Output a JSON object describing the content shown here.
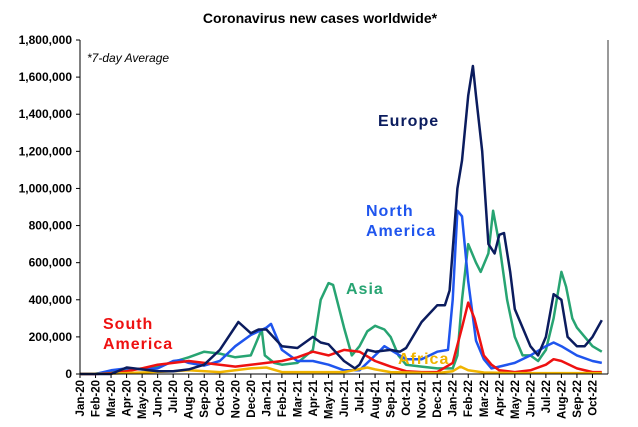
{
  "chart_data": {
    "type": "line",
    "title": "Coronavirus new cases worldwide*",
    "note": "*7-day Average",
    "xlabel": "",
    "ylabel": "",
    "ylim": [
      0,
      1800000
    ],
    "yticks": [
      "0",
      "200,000",
      "400,000",
      "600,000",
      "800,000",
      "1,000,000",
      "1,200,000",
      "1,400,000",
      "1,600,000",
      "1,800,000"
    ],
    "categories": [
      "Jan-20",
      "Feb-20",
      "Mar-20",
      "Apr-20",
      "May-20",
      "Jun-20",
      "Jul-20",
      "Aug-20",
      "Sep-20",
      "Oct-20",
      "Nov-20",
      "Dec-20",
      "Jan-21",
      "Feb-21",
      "Mar-21",
      "Apr-21",
      "May-21",
      "Jun-21",
      "Jul-21",
      "Aug-21",
      "Sep-21",
      "Oct-21",
      "Nov-21",
      "Dec-21",
      "Jan-22",
      "Feb-22",
      "Mar-22",
      "Apr-22",
      "May-22",
      "Jun-22",
      "Jul-22",
      "Aug-22",
      "Sep-22",
      "Oct-22"
    ],
    "grid": false,
    "series": [
      {
        "name": "Asia",
        "label": "Asia",
        "color": "#27a472",
        "points": [
          [
            0,
            0
          ],
          [
            1,
            2000
          ],
          [
            2,
            10000
          ],
          [
            3,
            20000
          ],
          [
            5,
            40000
          ],
          [
            7,
            90000
          ],
          [
            8,
            120000
          ],
          [
            9,
            110000
          ],
          [
            10,
            90000
          ],
          [
            11,
            100000
          ],
          [
            11.5,
            200000
          ],
          [
            11.7,
            240000
          ],
          [
            11.9,
            100000
          ],
          [
            12.5,
            60000
          ],
          [
            13,
            50000
          ],
          [
            14,
            60000
          ],
          [
            15,
            130000
          ],
          [
            15.5,
            400000
          ],
          [
            16,
            490000
          ],
          [
            16.3,
            480000
          ],
          [
            17,
            250000
          ],
          [
            17.5,
            100000
          ],
          [
            18,
            150000
          ],
          [
            18.5,
            230000
          ],
          [
            19,
            260000
          ],
          [
            19.6,
            240000
          ],
          [
            20,
            200000
          ],
          [
            20.5,
            100000
          ],
          [
            21,
            50000
          ],
          [
            22,
            40000
          ],
          [
            23,
            30000
          ],
          [
            24,
            30000
          ],
          [
            24.3,
            100000
          ],
          [
            24.6,
            400000
          ],
          [
            25,
            700000
          ],
          [
            25.5,
            600000
          ],
          [
            25.8,
            550000
          ],
          [
            26.3,
            650000
          ],
          [
            26.6,
            880000
          ],
          [
            27,
            700000
          ],
          [
            27.5,
            400000
          ],
          [
            28,
            200000
          ],
          [
            28.5,
            100000
          ],
          [
            29,
            100000
          ],
          [
            29.5,
            70000
          ],
          [
            30,
            130000
          ],
          [
            30.5,
            300000
          ],
          [
            31,
            550000
          ],
          [
            31.3,
            470000
          ],
          [
            31.7,
            300000
          ],
          [
            32,
            250000
          ],
          [
            33,
            150000
          ],
          [
            33.6,
            120000
          ]
        ]
      },
      {
        "name": "North America",
        "label": "North America",
        "color": "#1f55ee",
        "points": [
          [
            0,
            0
          ],
          [
            1,
            0
          ],
          [
            2,
            20000
          ],
          [
            3,
            30000
          ],
          [
            4,
            25000
          ],
          [
            5,
            30000
          ],
          [
            6,
            70000
          ],
          [
            6.5,
            75000
          ],
          [
            7,
            60000
          ],
          [
            8,
            45000
          ],
          [
            9,
            70000
          ],
          [
            10,
            150000
          ],
          [
            11,
            210000
          ],
          [
            12,
            250000
          ],
          [
            12.3,
            270000
          ],
          [
            13,
            130000
          ],
          [
            14,
            70000
          ],
          [
            15,
            70000
          ],
          [
            16,
            50000
          ],
          [
            17,
            20000
          ],
          [
            18,
            20000
          ],
          [
            19,
            100000
          ],
          [
            19.6,
            150000
          ],
          [
            20,
            130000
          ],
          [
            21,
            80000
          ],
          [
            22,
            80000
          ],
          [
            23,
            120000
          ],
          [
            23.7,
            130000
          ],
          [
            24,
            400000
          ],
          [
            24.3,
            880000
          ],
          [
            24.6,
            850000
          ],
          [
            25,
            500000
          ],
          [
            25.5,
            180000
          ],
          [
            26,
            80000
          ],
          [
            26.5,
            30000
          ],
          [
            27,
            40000
          ],
          [
            28,
            60000
          ],
          [
            29,
            100000
          ],
          [
            30,
            150000
          ],
          [
            30.5,
            170000
          ],
          [
            31,
            150000
          ],
          [
            32,
            100000
          ],
          [
            33,
            70000
          ],
          [
            33.6,
            60000
          ]
        ]
      },
      {
        "name": "South America",
        "label": "South America",
        "color": "#ee1111",
        "points": [
          [
            0,
            0
          ],
          [
            1,
            0
          ],
          [
            2,
            5000
          ],
          [
            3,
            15000
          ],
          [
            4,
            30000
          ],
          [
            5,
            50000
          ],
          [
            6,
            60000
          ],
          [
            7,
            70000
          ],
          [
            8,
            60000
          ],
          [
            9,
            50000
          ],
          [
            10,
            40000
          ],
          [
            11,
            50000
          ],
          [
            12,
            60000
          ],
          [
            13,
            70000
          ],
          [
            14,
            90000
          ],
          [
            15,
            120000
          ],
          [
            16,
            100000
          ],
          [
            17,
            130000
          ],
          [
            18,
            120000
          ],
          [
            19,
            70000
          ],
          [
            20,
            40000
          ],
          [
            21,
            15000
          ],
          [
            22,
            10000
          ],
          [
            23,
            10000
          ],
          [
            24,
            60000
          ],
          [
            24.6,
            250000
          ],
          [
            25,
            385000
          ],
          [
            25.4,
            300000
          ],
          [
            26,
            100000
          ],
          [
            26.5,
            50000
          ],
          [
            27,
            20000
          ],
          [
            28,
            10000
          ],
          [
            29,
            20000
          ],
          [
            30,
            50000
          ],
          [
            30.5,
            80000
          ],
          [
            31,
            70000
          ],
          [
            32,
            30000
          ],
          [
            33,
            10000
          ],
          [
            33.6,
            10000
          ]
        ]
      },
      {
        "name": "Africa",
        "label": "Africa",
        "color": "#f0b400",
        "points": [
          [
            0,
            0
          ],
          [
            2,
            2000
          ],
          [
            4,
            8000
          ],
          [
            6,
            15000
          ],
          [
            7,
            20000
          ],
          [
            9,
            10000
          ],
          [
            11,
            30000
          ],
          [
            12,
            35000
          ],
          [
            13,
            10000
          ],
          [
            17,
            10000
          ],
          [
            18.5,
            35000
          ],
          [
            19,
            25000
          ],
          [
            20,
            10000
          ],
          [
            23,
            5000
          ],
          [
            24,
            15000
          ],
          [
            24.5,
            40000
          ],
          [
            25,
            20000
          ],
          [
            26,
            8000
          ],
          [
            28,
            5000
          ],
          [
            33.6,
            5000
          ]
        ]
      },
      {
        "name": "Europe",
        "label": "Europe",
        "color": "#0b1c5e",
        "points": [
          [
            0,
            0
          ],
          [
            2,
            0
          ],
          [
            3,
            35000
          ],
          [
            4,
            25000
          ],
          [
            5,
            15000
          ],
          [
            6,
            15000
          ],
          [
            7,
            25000
          ],
          [
            8,
            50000
          ],
          [
            9,
            130000
          ],
          [
            10.2,
            280000
          ],
          [
            11,
            220000
          ],
          [
            11.5,
            240000
          ],
          [
            12,
            240000
          ],
          [
            13,
            150000
          ],
          [
            14,
            140000
          ],
          [
            15,
            200000
          ],
          [
            15.5,
            170000
          ],
          [
            16,
            160000
          ],
          [
            17,
            70000
          ],
          [
            17.7,
            30000
          ],
          [
            18,
            50000
          ],
          [
            18.5,
            130000
          ],
          [
            19,
            120000
          ],
          [
            20,
            130000
          ],
          [
            20.6,
            120000
          ],
          [
            21,
            140000
          ],
          [
            22,
            280000
          ],
          [
            23,
            370000
          ],
          [
            23.5,
            370000
          ],
          [
            23.8,
            450000
          ],
          [
            24.3,
            1000000
          ],
          [
            24.6,
            1150000
          ],
          [
            25,
            1500000
          ],
          [
            25.3,
            1660000
          ],
          [
            25.5,
            1500000
          ],
          [
            25.9,
            1200000
          ],
          [
            26.3,
            700000
          ],
          [
            26.7,
            650000
          ],
          [
            27,
            750000
          ],
          [
            27.3,
            760000
          ],
          [
            27.7,
            550000
          ],
          [
            28,
            350000
          ],
          [
            28.5,
            250000
          ],
          [
            29,
            150000
          ],
          [
            29.5,
            100000
          ],
          [
            30,
            200000
          ],
          [
            30.5,
            430000
          ],
          [
            31,
            400000
          ],
          [
            31.4,
            200000
          ],
          [
            32,
            150000
          ],
          [
            32.5,
            150000
          ],
          [
            33,
            200000
          ],
          [
            33.6,
            290000
          ]
        ]
      }
    ],
    "labels": {
      "europe": "Europe",
      "north_america_1": "North",
      "north_america_2": "America",
      "asia": "Asia",
      "south_america_1": "South",
      "south_america_2": "America",
      "africa": "Africa"
    }
  }
}
